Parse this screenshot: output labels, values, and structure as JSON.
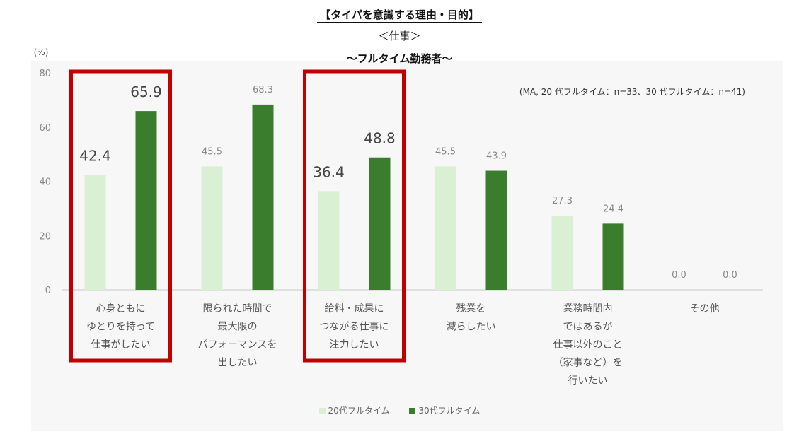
{
  "title": "【タイパを意識する理由・目的】",
  "subtitle1": "＜仕事＞",
  "subtitle2": "～フルタイム勤務者～",
  "note": "(MA, 20 代フルタイム：n=33、30 代フルタイム：n=41)",
  "y_unit": "(%)",
  "colors": {
    "series1": "#d9f0d3",
    "series2": "#3a7d2c",
    "highlight": "#c00000",
    "axis": "#d9d9d9"
  },
  "chart_data": {
    "type": "bar",
    "categories": [
      "心身ともに\nゆとりを持って\n仕事がしたい",
      "限られた時間で\n最大限の\nパフォーマンスを\n出したい",
      "給料・成果に\nつながる仕事に\n注力したい",
      "残業を\n減らしたい",
      "業務時間内\nではあるが\n仕事以外のこと\n（家事など）を\n行いたい",
      "その他"
    ],
    "series": [
      {
        "name": "20代フルタイム",
        "values": [
          42.4,
          45.5,
          36.4,
          45.5,
          27.3,
          0.0
        ]
      },
      {
        "name": "30代フルタイム",
        "values": [
          65.9,
          68.3,
          48.8,
          43.9,
          24.4,
          0.0
        ]
      }
    ],
    "yticks": [
      0,
      20,
      40,
      60,
      80
    ],
    "ylim": [
      0,
      80
    ],
    "value_labels": [
      [
        "42.4",
        "45.5",
        "36.4",
        "45.5",
        "27.3",
        "0.0"
      ],
      [
        "65.9",
        "68.3",
        "48.8",
        "43.9",
        "24.4",
        "0.0"
      ]
    ],
    "highlighted_categories": [
      0,
      2
    ],
    "legend_position": "bottom",
    "grid": false
  }
}
